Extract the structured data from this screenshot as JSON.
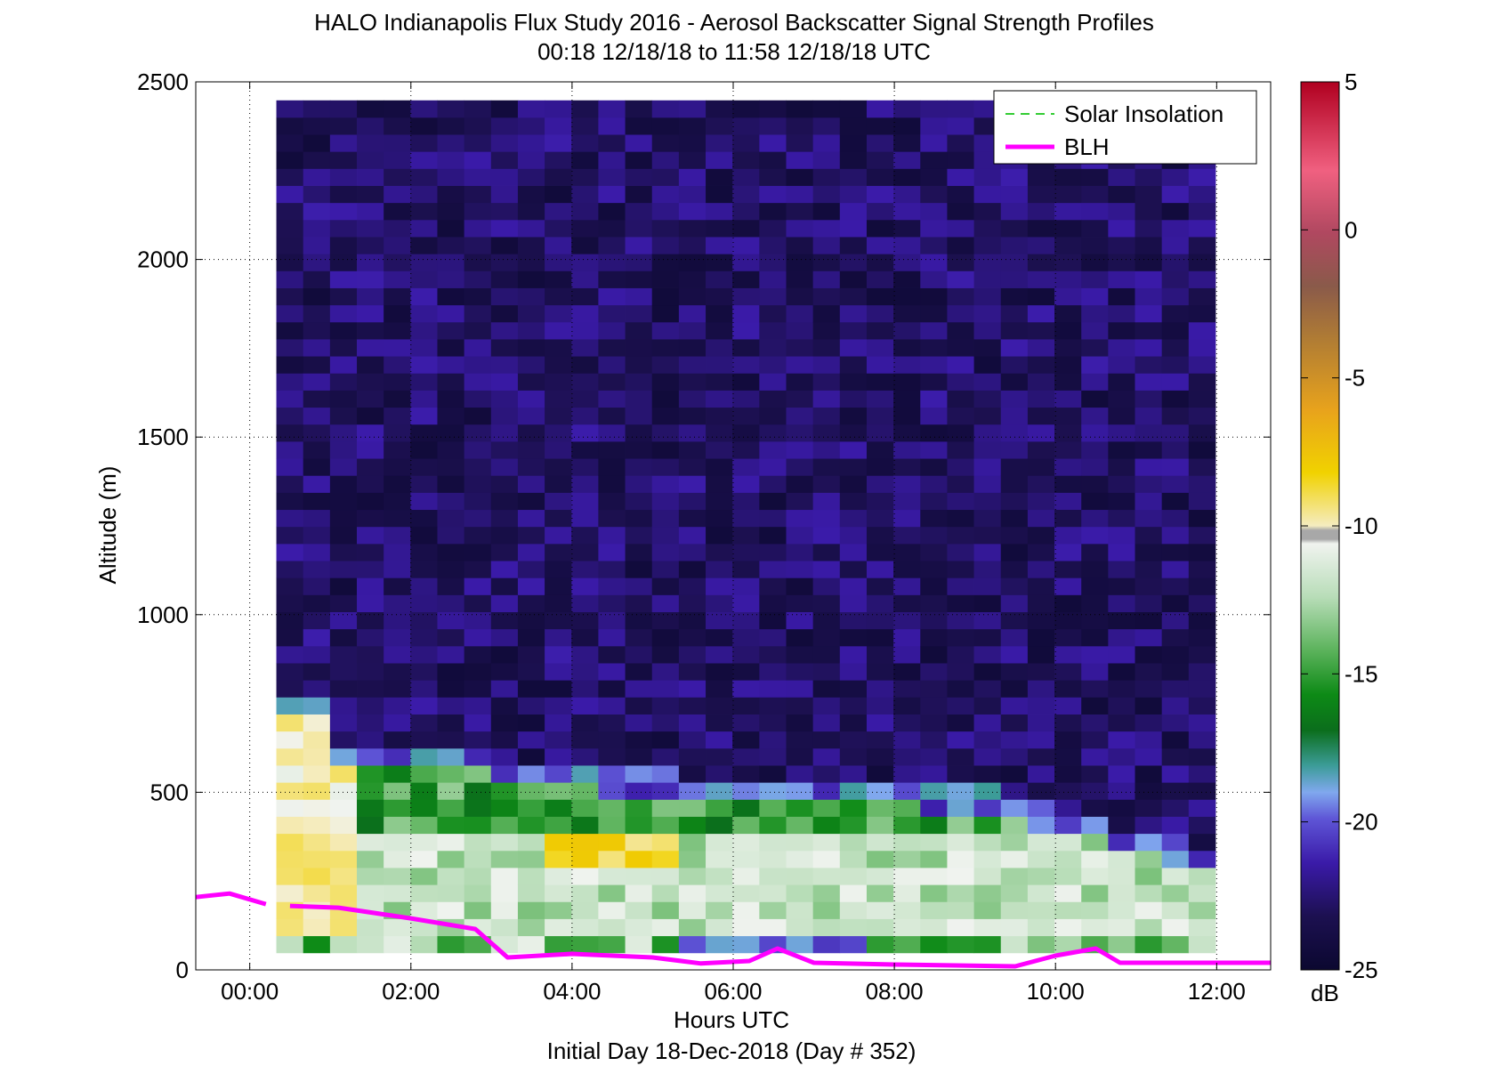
{
  "title": {
    "line1": "HALO Indianapolis Flux Study 2016 - Aerosol Backscatter Signal Strength Profiles",
    "line2": "00:18 12/18/18 to 11:58 12/18/18  UTC"
  },
  "xaxis": {
    "label": "Hours UTC",
    "sublabel": "Initial Day 18-Dec-2018 (Day # 352)",
    "ticks": [
      "00:00",
      "02:00",
      "04:00",
      "06:00",
      "08:00",
      "10:00",
      "12:00"
    ]
  },
  "yaxis": {
    "label": "Altitude (m)",
    "ticks": [
      "0",
      "500",
      "1000",
      "1500",
      "2000",
      "2500"
    ]
  },
  "colorbar": {
    "unit": "dB",
    "ticks": [
      "5",
      "0",
      "-5",
      "-10",
      "-15",
      "-20",
      "-25"
    ]
  },
  "legend": {
    "items": [
      {
        "label": "Solar Insolation",
        "color": "#33cc33",
        "style": "dashed"
      },
      {
        "label": "BLH",
        "color": "#ff00ff",
        "style": "solid"
      }
    ]
  },
  "chart_data": {
    "type": "heatmap",
    "title": "HALO Indianapolis Flux Study 2016 - Aerosol Backscatter Signal Strength Profiles",
    "subtitle": "00:18 12/18/18 to 11:58 12/18/18  UTC",
    "xlabel": "Hours UTC",
    "ylabel": "Altitude (m)",
    "xlim_hours": [
      -0.67,
      12.67
    ],
    "ylim_m": [
      0,
      2500
    ],
    "grid": true,
    "legend_position": "top-right",
    "colorbar": {
      "label": "dB",
      "range": [
        -25,
        5
      ]
    },
    "heatmap": {
      "x_start_hours": 0.33,
      "x_step_hours": 0.333,
      "columns": 35,
      "y_start_m": 48,
      "y_step_m": 48,
      "rows": 50,
      "value_unit": "dB",
      "profiles_summary": [
        {
          "altitude_range_m": [
            48,
            150
          ],
          "typical_dB": -14,
          "note": "mixed green/white near surface; blue/purple 05:30-07:30"
        },
        {
          "altitude_range_m": [
            150,
            400
          ],
          "typical_dB": -12,
          "note": "light green to pale yellow"
        },
        {
          "altitude_range_m": [
            300,
            450
          ],
          "typical_dB": -9,
          "note": "yellow patches 00:20-01:30 and 03:40-05:15"
        },
        {
          "altitude_range_m": [
            400,
            600
          ],
          "typical_dB": -15,
          "note": "green layer, top descends later in the period"
        },
        {
          "altitude_range_m": [
            600,
            2500
          ],
          "typical_dB": -23,
          "note": "dark purple background"
        }
      ]
    },
    "series": [
      {
        "name": "BLH",
        "x_hours": [
          -0.67,
          -0.25,
          0.2,
          0.5,
          1.1,
          2.0,
          2.8,
          3.2,
          4.0,
          5.0,
          5.6,
          6.2,
          6.55,
          7.0,
          8.0,
          9.5,
          10.0,
          10.5,
          10.8,
          12.67
        ],
        "y_m": [
          205,
          215,
          185,
          180,
          175,
          145,
          115,
          35,
          45,
          35,
          18,
          25,
          60,
          20,
          15,
          10,
          40,
          60,
          20,
          20
        ],
        "gaps_after_x": [
          0.2
        ]
      },
      {
        "name": "Solar Insolation",
        "x_hours": [],
        "y_m": []
      }
    ]
  }
}
